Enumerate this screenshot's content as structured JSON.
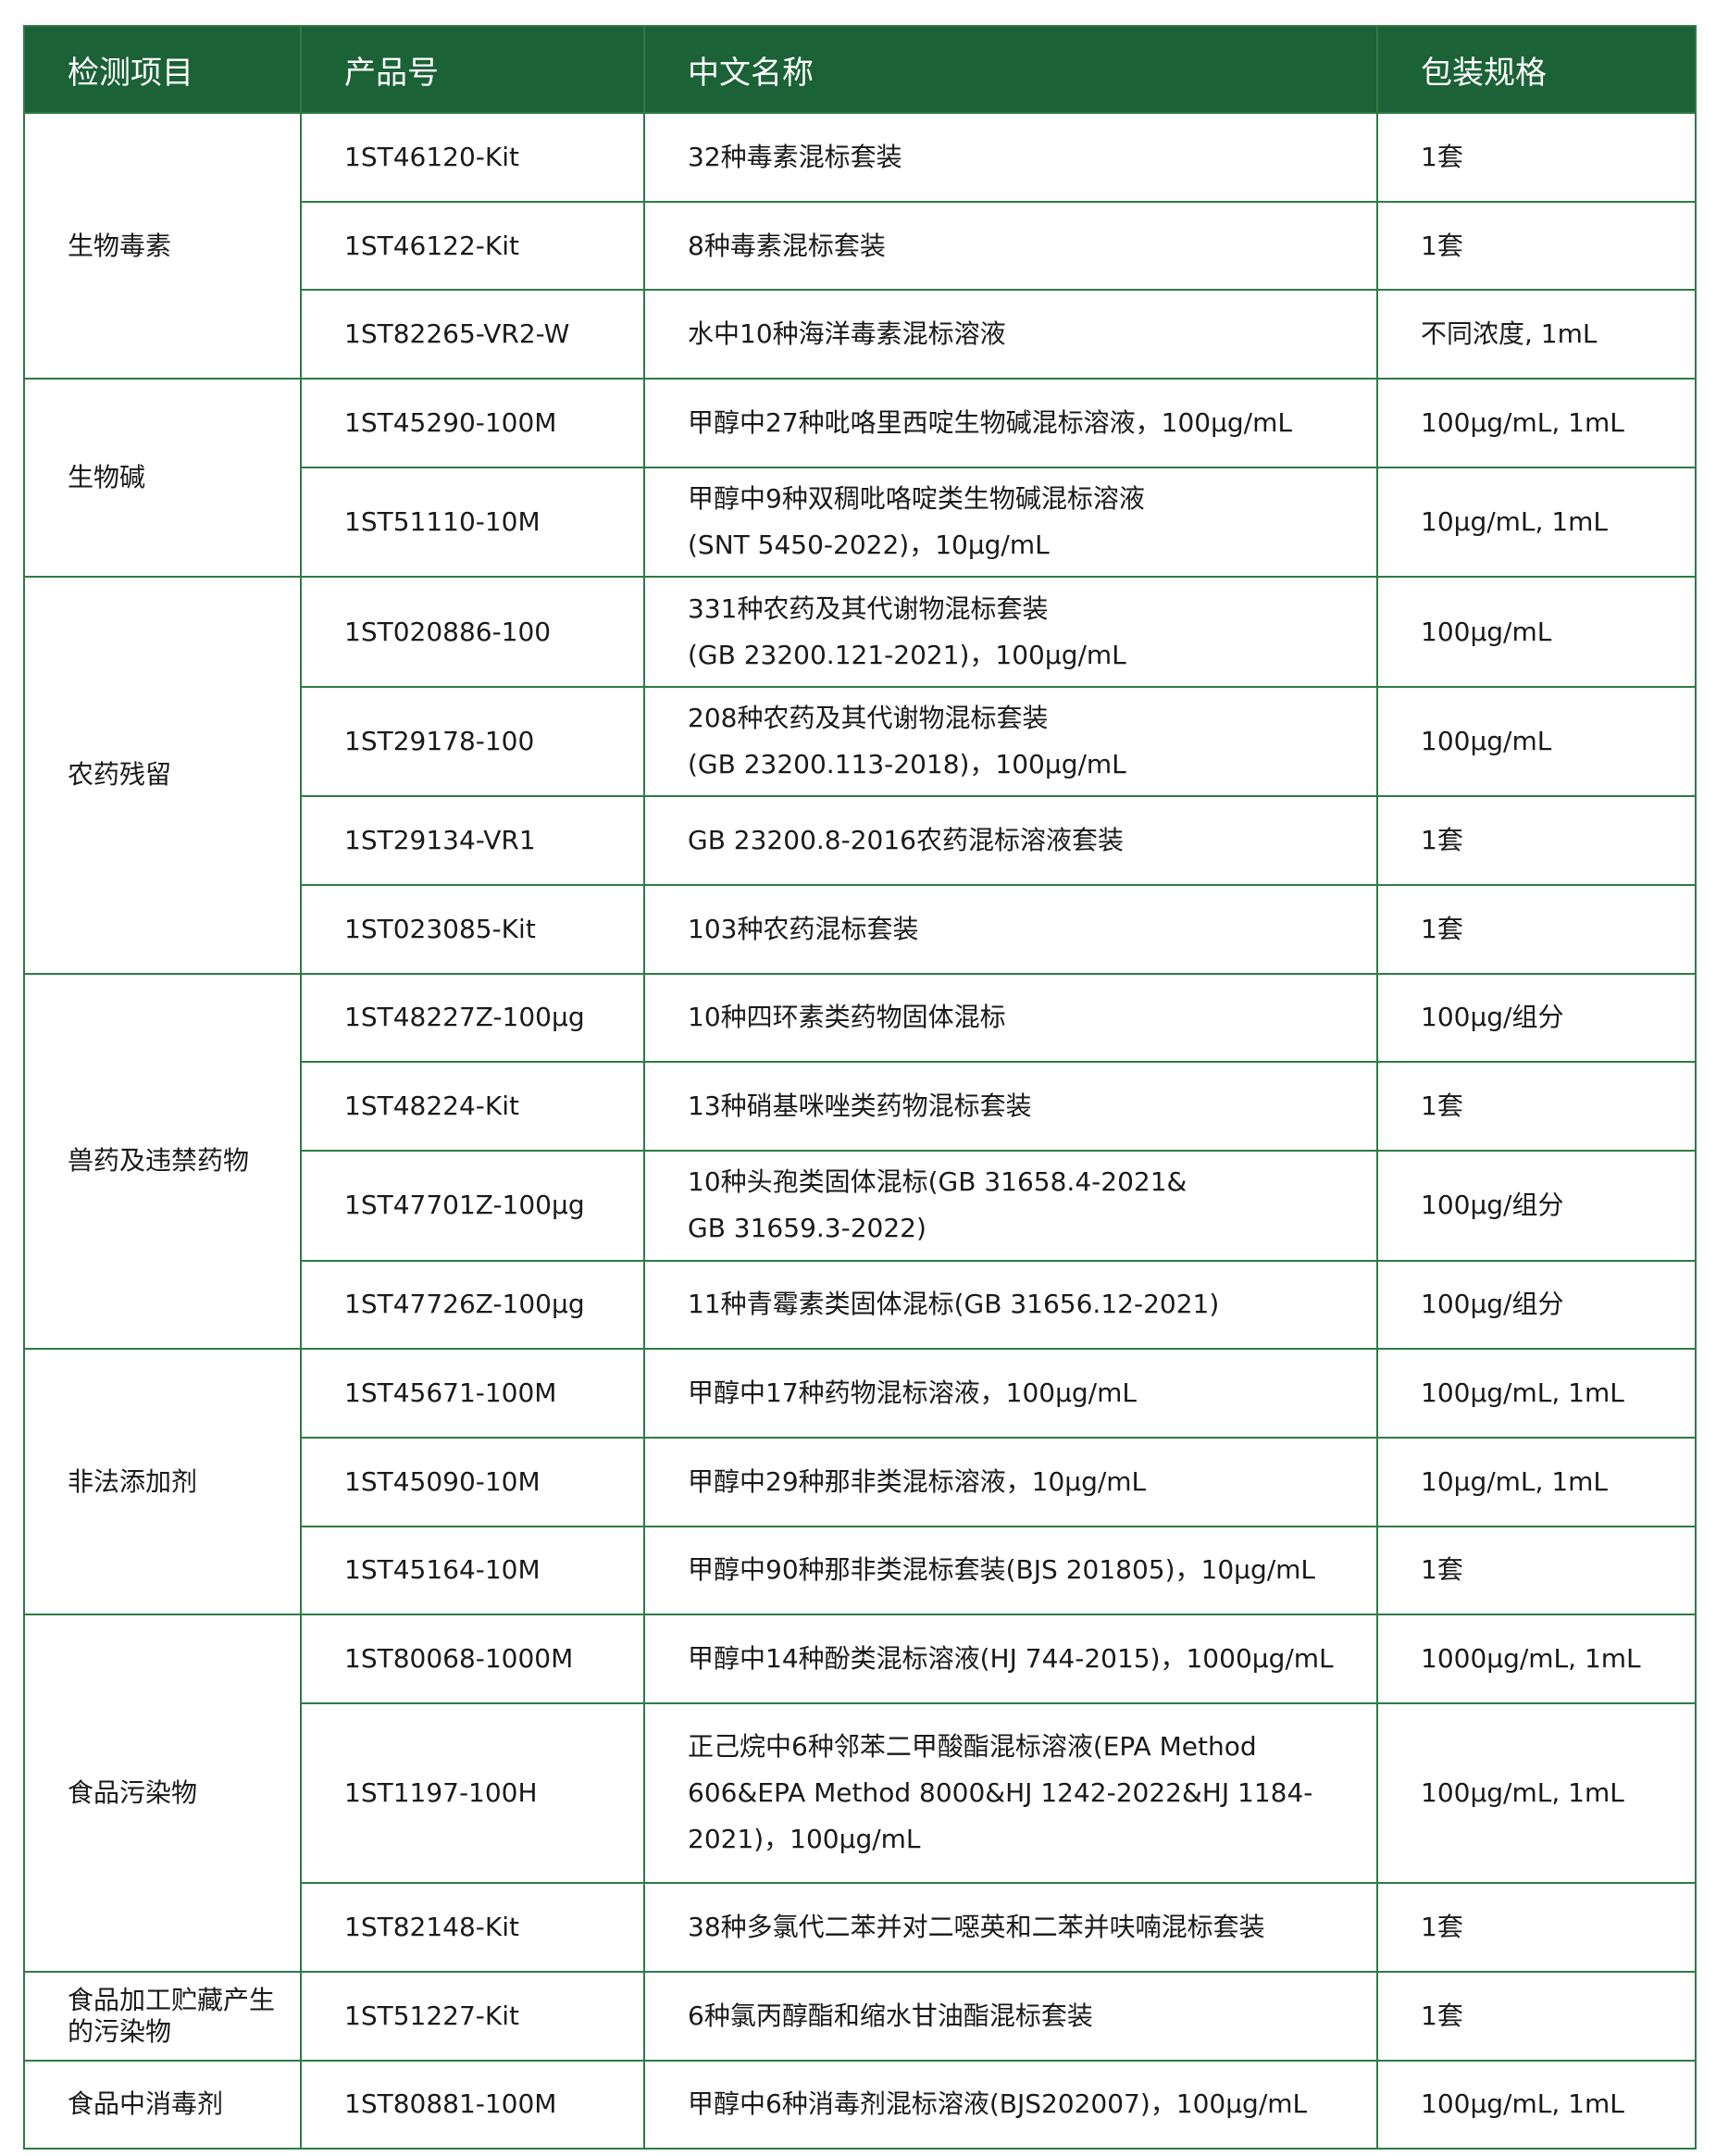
{
  "colors": {
    "header_bg": "#1b6236",
    "border": "#2f7a47"
  },
  "headers": [
    "检测项目",
    "产品号",
    "中文名称",
    "包装规格"
  ],
  "groups": [
    {
      "category": "生物毒素",
      "items": [
        {
          "code": "1ST46120-Kit",
          "name": "32种毒素混标套装",
          "pack": "1套"
        },
        {
          "code": "1ST46122-Kit",
          "name": "8种毒素混标套装",
          "pack": "1套"
        },
        {
          "code": "1ST82265-VR2-W",
          "name": "水中10种海洋毒素混标溶液",
          "pack": "不同浓度, 1mL"
        }
      ]
    },
    {
      "category": "生物碱",
      "items": [
        {
          "code": "1ST45290-100M",
          "name": "甲醇中27种吡咯里西啶生物碱混标溶液，100μg/mL",
          "pack": "100μg/mL, 1mL"
        },
        {
          "code": "1ST51110-10M",
          "name": "甲醇中9种双稠吡咯啶类生物碱混标溶液\n(SNT 5450-2022)，10μg/mL",
          "pack": "10μg/mL, 1mL"
        }
      ]
    },
    {
      "category": "农药残留",
      "items": [
        {
          "code": "1ST020886-100",
          "name": "331种农药及其代谢物混标套装\n(GB 23200.121-2021)，100μg/mL",
          "pack": "100μg/mL"
        },
        {
          "code": "1ST29178-100",
          "name": "208种农药及其代谢物混标套装\n(GB 23200.113-2018)，100μg/mL",
          "pack": "100μg/mL"
        },
        {
          "code": "1ST29134-VR1",
          "name": "GB 23200.8-2016农药混标溶液套装",
          "pack": "1套"
        },
        {
          "code": "1ST023085-Kit",
          "name": "103种农药混标套装",
          "pack": "1套"
        }
      ]
    },
    {
      "category": "兽药及违禁药物",
      "items": [
        {
          "code": "1ST48227Z-100μg",
          "name": "10种四环素类药物固体混标",
          "pack": "100μg/组分"
        },
        {
          "code": "1ST48224-Kit",
          "name": "13种硝基咪唑类药物混标套装",
          "pack": "1套"
        },
        {
          "code": "1ST47701Z-100μg",
          "name": "10种头孢类固体混标(GB 31658.4-2021&\nGB 31659.3-2022)",
          "pack": "100μg/组分"
        },
        {
          "code": "1ST47726Z-100μg",
          "name": "11种青霉素类固体混标(GB 31656.12-2021)",
          "pack": "100μg/组分"
        }
      ]
    },
    {
      "category": "非法添加剂",
      "items": [
        {
          "code": "1ST45671-100M",
          "name": "甲醇中17种药物混标溶液，100μg/mL",
          "pack": "100μg/mL, 1mL"
        },
        {
          "code": "1ST45090-10M",
          "name": "甲醇中29种那非类混标溶液，10μg/mL",
          "pack": "10μg/mL, 1mL"
        },
        {
          "code": "1ST45164-10M",
          "name": "甲醇中90种那非类混标套装(BJS 201805)，10μg/mL",
          "pack": "1套"
        }
      ]
    },
    {
      "category": "食品污染物",
      "items": [
        {
          "code": "1ST80068-1000M",
          "name": "甲醇中14种酚类混标溶液(HJ 744-2015)，1000μg/mL",
          "pack": "1000μg/mL, 1mL"
        },
        {
          "code": "1ST1197-100H",
          "name": "正己烷中6种邻苯二甲酸酯混标溶液(EPA Method\n606&EPA Method 8000&HJ 1242-2022&HJ 1184-\n2021)，100μg/mL",
          "pack": "100μg/mL, 1mL"
        },
        {
          "code": "1ST82148-Kit",
          "name": "38种多氯代二苯并对二噁英和二苯并呋喃混标套装",
          "pack": "1套"
        }
      ]
    },
    {
      "category": "食品加工贮藏产生\n的污染物",
      "items": [
        {
          "code": "1ST51227-Kit",
          "name": "6种氯丙醇酯和缩水甘油酯混标套装",
          "pack": "1套"
        }
      ]
    },
    {
      "category": "食品中消毒剂",
      "items": [
        {
          "code": "1ST80881-100M",
          "name": "甲醇中6种消毒剂混标溶液(BJS202007)，100μg/mL",
          "pack": "100μg/mL, 1mL"
        }
      ]
    }
  ]
}
